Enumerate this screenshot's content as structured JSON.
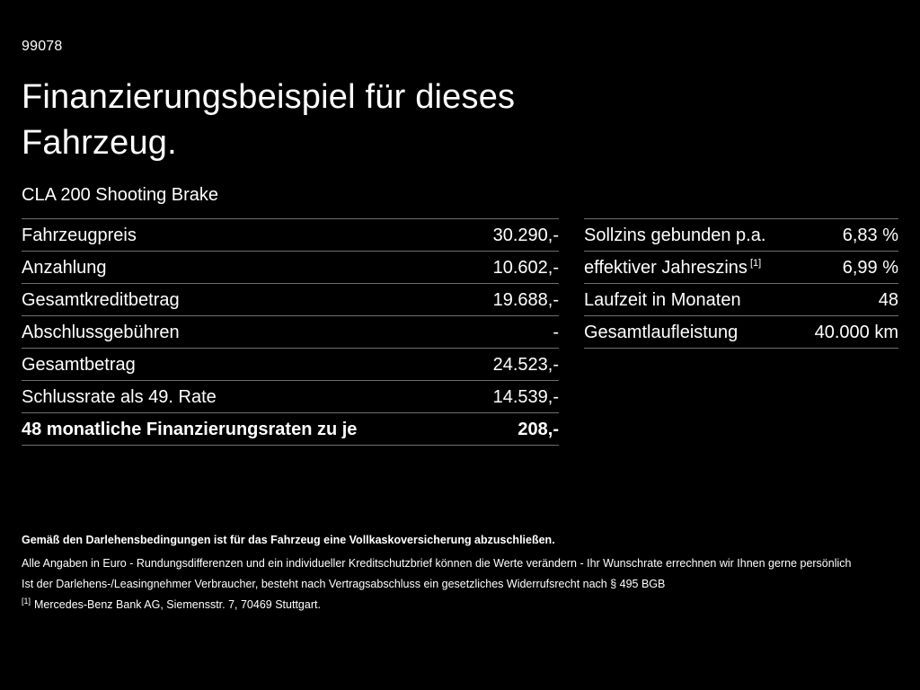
{
  "page": {
    "doc_number": "99078",
    "title_line1": "Finanzierungsbeispiel für dieses",
    "title_line2": "Fahrzeug.",
    "vehicle": "CLA 200 Shooting Brake"
  },
  "colors": {
    "background": "#000000",
    "text": "#ffffff",
    "divider": "#6f6f6f"
  },
  "left_table": {
    "rows": [
      {
        "label": "Fahrzeugpreis",
        "value": "30.290,-"
      },
      {
        "label": "Anzahlung",
        "value": "10.602,-"
      },
      {
        "label": "Gesamtkreditbetrag",
        "value": "19.688,-"
      },
      {
        "label": "Abschlussgebühren",
        "value": "-"
      },
      {
        "label": "Gesamtbetrag",
        "value": "24.523,-"
      },
      {
        "label": "Schlussrate als 49. Rate",
        "value": "14.539,-"
      },
      {
        "label": "48 monatliche Finanzierungsraten zu je",
        "value": "208,-"
      }
    ]
  },
  "right_table": {
    "rows": [
      {
        "label": "Sollzins gebunden p.a.",
        "sup": "",
        "value": "6,83 %"
      },
      {
        "label": "effektiver Jahreszins",
        "sup": "[1]",
        "value": "6,99 %"
      },
      {
        "label": "Laufzeit in Monaten",
        "sup": "",
        "value": "48"
      },
      {
        "label": "Gesamtlaufleistung",
        "sup": "",
        "value": "40.000 km"
      }
    ]
  },
  "footnotes": {
    "note1": "Gemäß den Darlehensbedingungen ist für das Fahrzeug eine Vollkaskoversicherung abzuschließen.",
    "note2": "Alle Angaben in Euro - Rundungsdifferenzen und ein individueller Kreditschutzbrief können die Werte verändern - Ihr Wunschrate errechnen wir Ihnen gerne persönlich",
    "note3": "Ist der Darlehens-/Leasingnehmer Verbraucher, besteht nach Vertragsabschluss ein gesetzliches Widerrufsrecht nach § 495 BGB",
    "ref_marker": "[1]",
    "ref_text": "Mercedes-Benz Bank AG, Siemensstr. 7, 70469 Stuttgart."
  }
}
